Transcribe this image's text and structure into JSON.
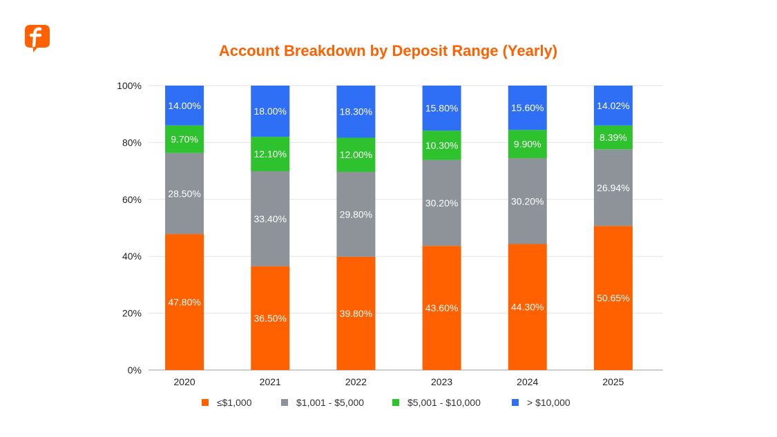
{
  "logo": {
    "icon": "brand-f-logo",
    "color": "#ff6000"
  },
  "chart_data": {
    "type": "bar",
    "stacked": true,
    "title": "Account Breakdown by Deposit Range (Yearly)",
    "xlabel": "",
    "ylabel": "",
    "categories": [
      "2020",
      "2021",
      "2022",
      "2023",
      "2024",
      "2025"
    ],
    "ylim": [
      0,
      100
    ],
    "yticks": [
      "0%",
      "20%",
      "40%",
      "60%",
      "80%",
      "100%"
    ],
    "grid": true,
    "legend_position": "bottom",
    "series": [
      {
        "name": "≤$1,000",
        "color": "#ff6000",
        "values": [
          47.8,
          36.5,
          39.8,
          43.6,
          44.3,
          50.65
        ]
      },
      {
        "name": "$1,001 - $5,000",
        "color": "#8e9399",
        "values": [
          28.5,
          33.4,
          29.8,
          30.2,
          30.2,
          26.94
        ]
      },
      {
        "name": "$5,001 - $10,000",
        "color": "#2ec22e",
        "values": [
          9.7,
          12.1,
          12.0,
          10.3,
          9.9,
          8.39
        ]
      },
      {
        "name": "> $10,000",
        "color": "#2f6ff5",
        "values": [
          14.0,
          18.0,
          18.3,
          15.8,
          15.6,
          14.02
        ]
      }
    ],
    "labels": [
      [
        "47.80%",
        "36.50%",
        "39.80%",
        "43.60%",
        "44.30%",
        "50.65%"
      ],
      [
        "28.50%",
        "33.40%",
        "29.80%",
        "30.20%",
        "30.20%",
        "26.94%"
      ],
      [
        "9.70%",
        "12.10%",
        "12.00%",
        "10.30%",
        "9.90%",
        "8.39%"
      ],
      [
        "14.00%",
        "18.00%",
        "18.30%",
        "15.80%",
        "15.60%",
        "14.02%"
      ]
    ]
  }
}
